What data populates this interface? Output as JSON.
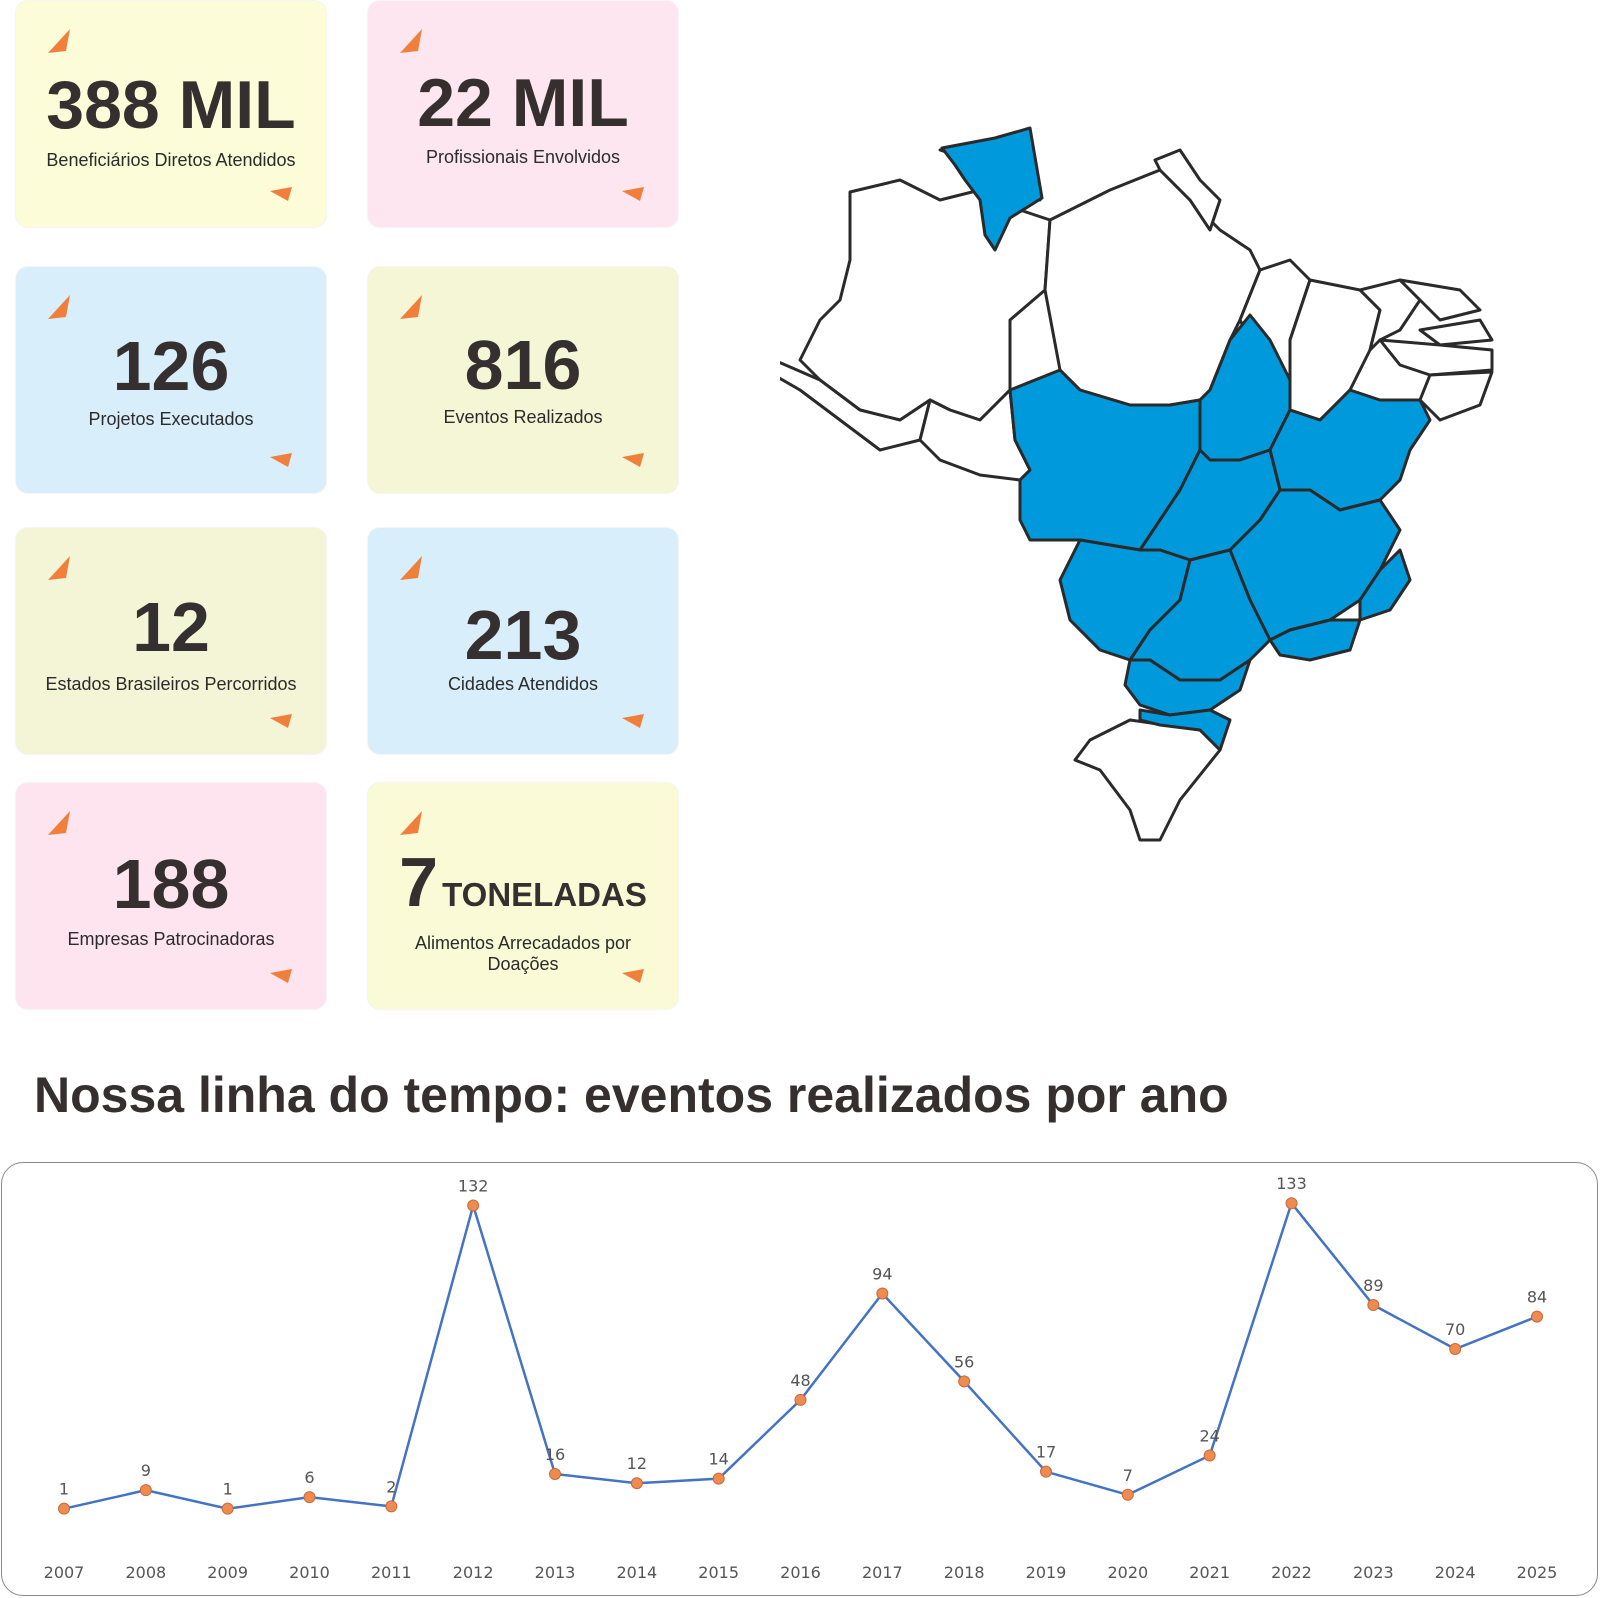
{
  "stats": [
    {
      "value": "388 MIL",
      "unit": "",
      "label": "Beneficiários Diretos Atendidos",
      "color": "#fcfcd8"
    },
    {
      "value": "22 MIL",
      "unit": "",
      "label": "Profissionais Envolvidos",
      "color": "#fde6ef"
    },
    {
      "value": "126",
      "unit": "",
      "label": "Projetos Executados",
      "color": "#d8eefb"
    },
    {
      "value": "816",
      "unit": "",
      "label": "Eventos Realizados",
      "color": "#f5f6d5"
    },
    {
      "value": "12",
      "unit": "",
      "label": "Estados Brasileiros Percorridos",
      "color": "#f4f5d6"
    },
    {
      "value": "213",
      "unit": "",
      "label": "Cidades Atendidos",
      "color": "#d8eefb"
    },
    {
      "value": "188",
      "unit": "",
      "label": "Empresas Patrocinadoras",
      "color": "#fde4ee"
    },
    {
      "value": "7",
      "unit": "TONELADAS",
      "label": "Alimentos Arrecadados por Doações",
      "color": "#fafbd6"
    }
  ],
  "icon_color": "#f07f3c",
  "map": {
    "highlight_color": "#0099dc",
    "outline_color": "#2a2a2a"
  },
  "timeline_title": "Nossa linha do tempo: eventos realizados por ano",
  "chart_data": {
    "type": "line",
    "title": "",
    "xlabel": "",
    "ylabel": "",
    "categories": [
      "2007",
      "2008",
      "2009",
      "2010",
      "2011",
      "2012",
      "2013",
      "2014",
      "2015",
      "2016",
      "2017",
      "2018",
      "2019",
      "2020",
      "2021",
      "2022",
      "2023",
      "2024",
      "2025"
    ],
    "series": [
      {
        "values": [
          1,
          9,
          1,
          6,
          2,
          132,
          16,
          12,
          14,
          48,
          94,
          56,
          17,
          7,
          24,
          133,
          89,
          70,
          84
        ]
      }
    ],
    "data_labels": true,
    "ylim": [
      0,
      140
    ],
    "grid": false,
    "line_color": "#4472c4",
    "marker_color": "#ed8b51"
  }
}
